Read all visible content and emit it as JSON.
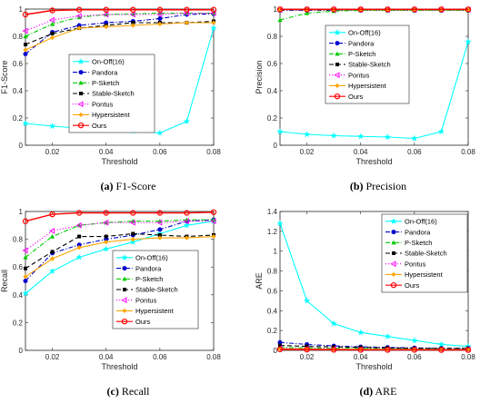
{
  "chart_data": [
    {
      "type": "line",
      "caption_letter": "(a)",
      "caption_text": "F1-Score",
      "xlabel": "Threshold",
      "ylabel": "F1-Score",
      "xlim": [
        0.01,
        0.08
      ],
      "ylim": [
        0,
        1
      ],
      "xticks": [
        "0.02",
        "0.04",
        "0.06",
        "0.08"
      ],
      "yticks": [
        "0",
        "0.2",
        "0.4",
        "0.6",
        "0.8",
        "1"
      ],
      "legend_position": "center-right",
      "x": [
        0.01,
        0.02,
        0.03,
        0.04,
        0.05,
        0.06,
        0.07,
        0.08
      ],
      "series": [
        {
          "name": "On-Off(16)",
          "color": "#00ffff",
          "dash": "solid",
          "marker": "star",
          "values": [
            0.16,
            0.14,
            0.125,
            0.115,
            0.105,
            0.09,
            0.175,
            0.86
          ]
        },
        {
          "name": "Pandora",
          "color": "#0000cd",
          "dash": "dashdot",
          "marker": "circle",
          "values": [
            0.67,
            0.83,
            0.88,
            0.9,
            0.91,
            0.93,
            0.96,
            0.965
          ]
        },
        {
          "name": "P-Sketch",
          "color": "#00cc00",
          "dash": "dashdot",
          "marker": "triangle",
          "values": [
            0.8,
            0.89,
            0.94,
            0.96,
            0.965,
            0.97,
            0.97,
            0.97
          ]
        },
        {
          "name": "Stable-Sketch",
          "color": "#000000",
          "dash": "dashed",
          "marker": "square",
          "values": [
            0.74,
            0.82,
            0.86,
            0.88,
            0.9,
            0.9,
            0.9,
            0.91
          ]
        },
        {
          "name": "Pontus",
          "color": "#ff00ff",
          "dash": "dotted",
          "marker": "triangle-left",
          "values": [
            0.84,
            0.92,
            0.95,
            0.96,
            0.96,
            0.96,
            0.97,
            0.97
          ]
        },
        {
          "name": "Hypersistent",
          "color": "#ffa500",
          "dash": "solid",
          "marker": "diamond",
          "values": [
            0.7,
            0.79,
            0.86,
            0.87,
            0.88,
            0.89,
            0.9,
            0.9
          ]
        },
        {
          "name": "Ours",
          "color": "#ff0000",
          "dash": "solid",
          "marker": "circle-open",
          "values": [
            0.96,
            0.99,
            0.995,
            0.995,
            0.995,
            0.995,
            0.995,
            0.995
          ]
        }
      ]
    },
    {
      "type": "line",
      "caption_letter": "(b)",
      "caption_text": "Precision",
      "xlabel": "Threshold",
      "ylabel": "Precision",
      "xlim": [
        0.01,
        0.08
      ],
      "ylim": [
        0,
        1
      ],
      "xticks": [
        "0.02",
        "0.04",
        "0.06",
        "0.08"
      ],
      "yticks": [
        "0",
        "0.2",
        "0.4",
        "0.6",
        "0.8",
        "1"
      ],
      "legend_position": "center",
      "x": [
        0.01,
        0.02,
        0.03,
        0.04,
        0.05,
        0.06,
        0.07,
        0.08
      ],
      "series": [
        {
          "name": "On-Off(16)",
          "color": "#00ffff",
          "dash": "solid",
          "marker": "star",
          "values": [
            0.1,
            0.08,
            0.07,
            0.065,
            0.06,
            0.05,
            0.1,
            0.76
          ]
        },
        {
          "name": "Pandora",
          "color": "#0000cd",
          "dash": "dashdot",
          "marker": "circle",
          "values": [
            0.99,
            0.99,
            0.99,
            0.99,
            0.99,
            0.99,
            0.99,
            0.99
          ]
        },
        {
          "name": "P-Sketch",
          "color": "#00cc00",
          "dash": "dashdot",
          "marker": "triangle",
          "values": [
            0.92,
            0.97,
            0.985,
            0.99,
            0.99,
            0.99,
            0.99,
            0.99
          ]
        },
        {
          "name": "Stable-Sketch",
          "color": "#000000",
          "dash": "dashed",
          "marker": "square",
          "values": [
            0.995,
            0.995,
            0.995,
            0.995,
            0.995,
            0.995,
            0.995,
            0.995
          ]
        },
        {
          "name": "Pontus",
          "color": "#ff00ff",
          "dash": "dotted",
          "marker": "triangle-left",
          "values": [
            0.995,
            0.995,
            0.995,
            0.995,
            0.995,
            0.995,
            0.995,
            0.995
          ]
        },
        {
          "name": "Hypersistent",
          "color": "#ffa500",
          "dash": "solid",
          "marker": "diamond",
          "values": [
            0.995,
            0.995,
            0.995,
            0.995,
            0.995,
            0.995,
            0.995,
            0.995
          ]
        },
        {
          "name": "Ours",
          "color": "#ff0000",
          "dash": "solid",
          "marker": "circle-open",
          "values": [
            0.998,
            0.998,
            0.998,
            0.998,
            0.998,
            0.998,
            0.998,
            0.998
          ]
        }
      ]
    },
    {
      "type": "line",
      "caption_letter": "(c)",
      "caption_text": "Recall",
      "xlabel": "Threshold",
      "ylabel": "Recall",
      "xlim": [
        0.01,
        0.08
      ],
      "ylim": [
        0,
        1
      ],
      "xticks": [
        "0.02",
        "0.04",
        "0.06",
        "0.08"
      ],
      "yticks": [
        "0",
        "0.2",
        "0.4",
        "0.6",
        "0.8",
        "1"
      ],
      "legend_position": "center-right",
      "x": [
        0.01,
        0.02,
        0.03,
        0.04,
        0.05,
        0.06,
        0.07,
        0.08
      ],
      "series": [
        {
          "name": "On-Off(16)",
          "color": "#00ffff",
          "dash": "solid",
          "marker": "star",
          "values": [
            0.41,
            0.57,
            0.67,
            0.73,
            0.78,
            0.84,
            0.9,
            0.93
          ]
        },
        {
          "name": "Pandora",
          "color": "#0000cd",
          "dash": "dashdot",
          "marker": "circle",
          "values": [
            0.5,
            0.7,
            0.76,
            0.8,
            0.83,
            0.87,
            0.93,
            0.94
          ]
        },
        {
          "name": "P-Sketch",
          "color": "#00cc00",
          "dash": "dashdot",
          "marker": "triangle",
          "values": [
            0.67,
            0.82,
            0.9,
            0.92,
            0.93,
            0.93,
            0.94,
            0.94
          ]
        },
        {
          "name": "Stable-Sketch",
          "color": "#000000",
          "dash": "dashed",
          "marker": "square",
          "values": [
            0.59,
            0.71,
            0.82,
            0.82,
            0.84,
            0.83,
            0.82,
            0.83
          ]
        },
        {
          "name": "Pontus",
          "color": "#ff00ff",
          "dash": "dotted",
          "marker": "triangle-left",
          "values": [
            0.72,
            0.86,
            0.9,
            0.92,
            0.92,
            0.92,
            0.93,
            0.93
          ]
        },
        {
          "name": "Hypersistent",
          "color": "#ffa500",
          "dash": "solid",
          "marker": "diamond",
          "values": [
            0.53,
            0.66,
            0.74,
            0.78,
            0.8,
            0.81,
            0.81,
            0.82
          ]
        },
        {
          "name": "Ours",
          "color": "#ff0000",
          "dash": "solid",
          "marker": "circle-open",
          "values": [
            0.93,
            0.98,
            0.99,
            0.99,
            0.99,
            0.99,
            0.99,
            0.995
          ]
        }
      ]
    },
    {
      "type": "line",
      "caption_letter": "(d)",
      "caption_text": "ARE",
      "xlabel": "Threshold",
      "ylabel": "ARE",
      "xlim": [
        0.01,
        0.08
      ],
      "ylim": [
        0,
        1.4
      ],
      "xticks": [
        "0.02",
        "0.04",
        "0.06",
        "0.08"
      ],
      "yticks": [
        "0",
        "0.2",
        "0.4",
        "0.6",
        "0.8",
        "1",
        "1.2",
        "1.4"
      ],
      "legend_position": "top-right",
      "x": [
        0.01,
        0.02,
        0.03,
        0.04,
        0.05,
        0.06,
        0.07,
        0.08
      ],
      "series": [
        {
          "name": "On-Off(16)",
          "color": "#00ffff",
          "dash": "solid",
          "marker": "star",
          "values": [
            1.28,
            0.5,
            0.27,
            0.18,
            0.14,
            0.1,
            0.06,
            0.04
          ]
        },
        {
          "name": "Pandora",
          "color": "#0000cd",
          "dash": "dashdot",
          "marker": "circle",
          "values": [
            0.08,
            0.06,
            0.045,
            0.035,
            0.03,
            0.025,
            0.02,
            0.02
          ]
        },
        {
          "name": "P-Sketch",
          "color": "#00cc00",
          "dash": "dashdot",
          "marker": "triangle",
          "values": [
            0.03,
            0.025,
            0.02,
            0.02,
            0.015,
            0.015,
            0.015,
            0.01
          ]
        },
        {
          "name": "Stable-Sketch",
          "color": "#000000",
          "dash": "dashed",
          "marker": "square",
          "values": [
            0.05,
            0.04,
            0.035,
            0.03,
            0.025,
            0.02,
            0.02,
            0.02
          ]
        },
        {
          "name": "Pontus",
          "color": "#ff00ff",
          "dash": "dotted",
          "marker": "triangle-left",
          "values": [
            0.02,
            0.015,
            0.015,
            0.01,
            0.01,
            0.01,
            0.01,
            0.01
          ]
        },
        {
          "name": "Hypersistent",
          "color": "#ffa500",
          "dash": "solid",
          "marker": "diamond",
          "values": [
            0.015,
            0.012,
            0.01,
            0.01,
            0.01,
            0.01,
            0.008,
            0.008
          ]
        },
        {
          "name": "Ours",
          "color": "#ff0000",
          "dash": "solid",
          "marker": "circle-open",
          "values": [
            0.01,
            0.008,
            0.006,
            0.005,
            0.005,
            0.005,
            0.004,
            0.004
          ]
        }
      ]
    }
  ]
}
